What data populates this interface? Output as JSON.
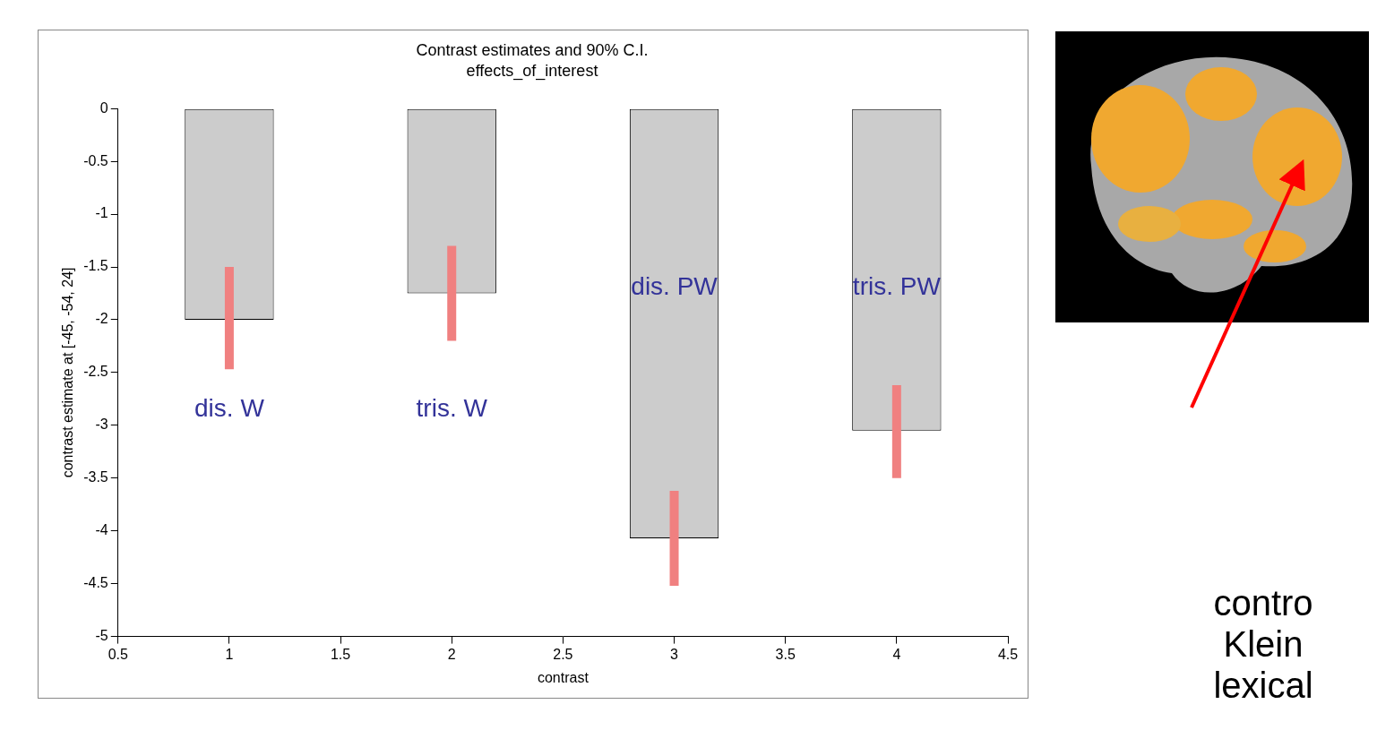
{
  "chart_data": {
    "type": "bar",
    "title": "Contrast estimates and 90% C.I.",
    "subtitle": "effects_of_interest",
    "x_label": "contrast",
    "y_label": "contrast estimate at [-45, -54, 24]",
    "x": [
      1,
      2,
      3,
      4
    ],
    "values": [
      -2,
      -1.75,
      -4.07,
      -3.05
    ],
    "ci_lower": [
      -2.47,
      -2.2,
      -4.52,
      -3.5
    ],
    "ci_upper": [
      -1.5,
      -1.3,
      -3.62,
      -2.62
    ],
    "color": "#cccccc",
    "xlim": [
      0.5,
      4.5
    ],
    "xticks": [
      0.5,
      1,
      1.5,
      2,
      2.5,
      3,
      3.5,
      4,
      4.5
    ],
    "ylim": [
      -5,
      0
    ],
    "yticks": [
      -5,
      -4.5,
      -4,
      -3.5,
      -3,
      -2.5,
      -2,
      -1.5,
      -1,
      -0.5,
      0
    ],
    "grid": false,
    "annotations": [
      {
        "text": "dis. W",
        "x": 1,
        "y": -2.85
      },
      {
        "text": "tris. W",
        "x": 2,
        "y": -2.85
      },
      {
        "text": "dis. PW",
        "x": 3,
        "y": -1.7
      },
      {
        "text": "tris. PW",
        "x": 4,
        "y": -1.7
      }
    ]
  },
  "side_text": [
    "contro",
    "Klein",
    "lexical"
  ]
}
